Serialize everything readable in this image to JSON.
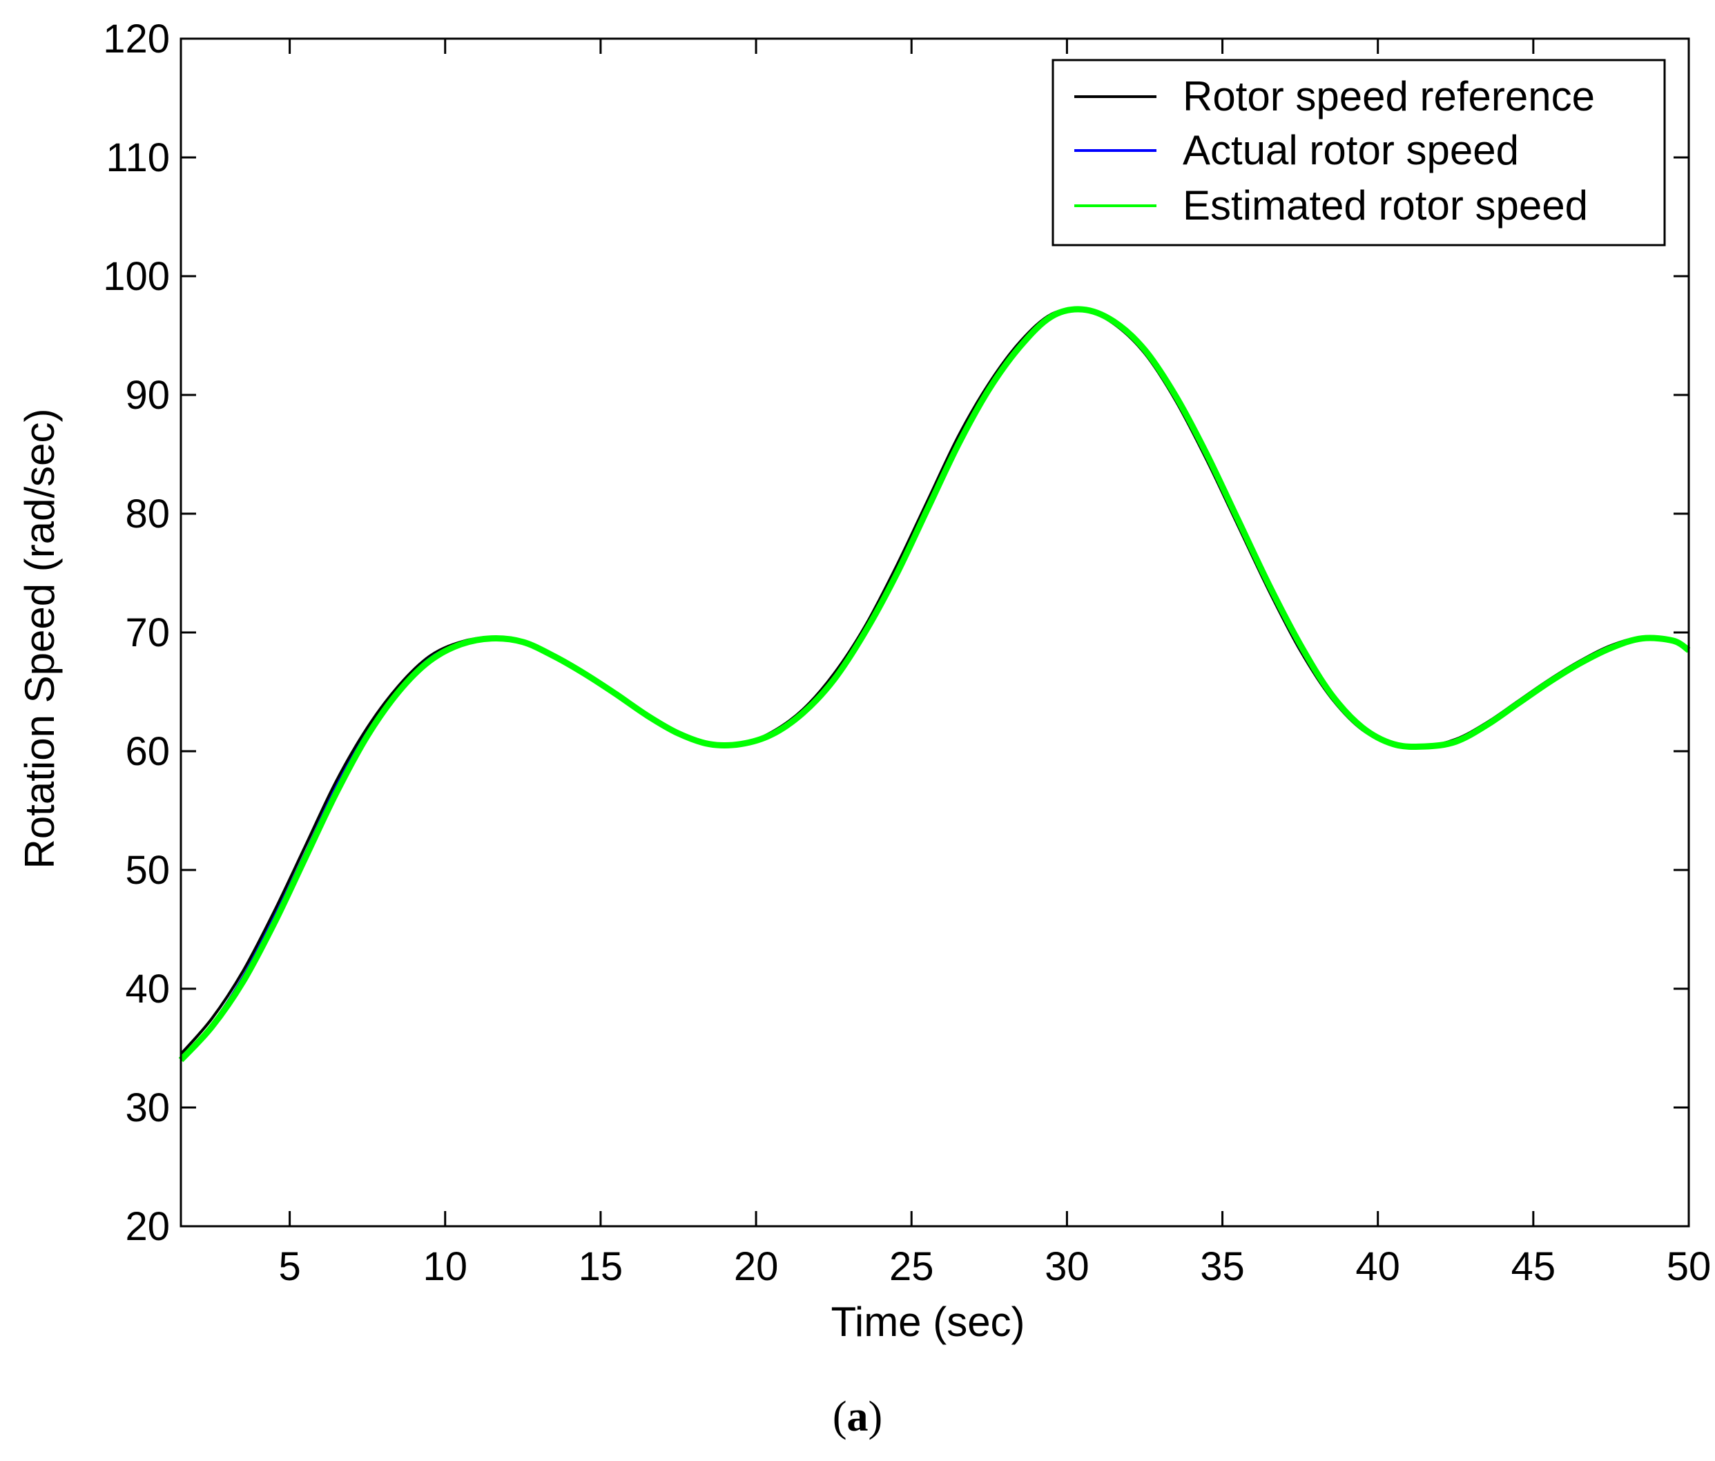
{
  "chart_data": {
    "type": "line",
    "xlabel": "Time (sec)",
    "ylabel": "Rotation Speed (rad/sec)",
    "xlim": [
      1.5,
      50
    ],
    "ylim": [
      20,
      120
    ],
    "x_ticks": [
      5,
      10,
      15,
      20,
      25,
      30,
      35,
      40,
      45,
      50
    ],
    "y_ticks": [
      20,
      30,
      40,
      50,
      60,
      70,
      80,
      90,
      100,
      110,
      120
    ],
    "grid": false,
    "legend_position": "top-right",
    "series": [
      {
        "name": "Rotor speed reference",
        "color": "#000000",
        "x": [
          1.5,
          2.5,
          3.5,
          4.5,
          5.5,
          6.5,
          7.5,
          8.5,
          9.5,
          10.5,
          11.5,
          12.5,
          13.5,
          14.5,
          15.5,
          16.5,
          17.5,
          18.5,
          19.5,
          20.5,
          21.5,
          22.5,
          23.5,
          24.5,
          25.5,
          26.5,
          27.5,
          28.5,
          29.5,
          30.5,
          31.5,
          32.5,
          33.5,
          34.5,
          35.5,
          36.5,
          37.5,
          38.5,
          39.5,
          40.5,
          41.5,
          42.5,
          43.5,
          44.5,
          45.5,
          46.5,
          47.5,
          48.5,
          49.5,
          50
        ],
        "y": [
          34.5,
          37.5,
          41.5,
          46.5,
          52,
          57.5,
          62,
          65.5,
          68,
          69.2,
          69.6,
          69.2,
          68,
          66.5,
          64.8,
          63,
          61.5,
          60.6,
          60.6,
          61.6,
          63.5,
          66.5,
          70.5,
          75.5,
          81,
          86.5,
          91,
          94.5,
          96.8,
          97.2,
          96,
          93.5,
          89.5,
          84.5,
          79,
          73.5,
          68.5,
          64.5,
          61.8,
          60.6,
          60.4,
          61,
          62.4,
          64.2,
          66,
          67.6,
          68.9,
          69.6,
          69.3,
          68.6
        ]
      },
      {
        "name": "Actual rotor speed",
        "color": "#0000ff",
        "x": [
          1.5,
          2.5,
          3.5,
          4.5,
          5.5,
          6.5,
          7.5,
          8.5,
          9.5,
          10.5,
          11.5,
          12.5,
          13.5,
          14.5,
          15.5,
          16.5,
          17.5,
          18.5,
          19.5,
          20.5,
          21.5,
          22.5,
          23.5,
          24.5,
          25.5,
          26.5,
          27.5,
          28.5,
          29.5,
          30.5,
          31.5,
          32.5,
          33.5,
          34.5,
          35.5,
          36.5,
          37.5,
          38.5,
          39.5,
          40.5,
          41.5,
          42.5,
          43.5,
          44.5,
          45.5,
          46.5,
          47.5,
          48.5,
          49.5,
          50
        ],
        "y": [
          34.2,
          37,
          41,
          46,
          51.4,
          57,
          61.6,
          65.2,
          67.8,
          69.1,
          69.6,
          69.2,
          68,
          66.5,
          64.8,
          63,
          61.5,
          60.6,
          60.6,
          61.5,
          63.3,
          66.2,
          70.2,
          75.1,
          80.6,
          86.1,
          90.7,
          94.3,
          96.7,
          97.2,
          96.1,
          93.6,
          89.7,
          84.7,
          79.2,
          73.7,
          68.7,
          64.6,
          61.9,
          60.6,
          60.4,
          60.9,
          62.3,
          64.1,
          65.9,
          67.5,
          68.8,
          69.6,
          69.3,
          68.6
        ]
      },
      {
        "name": "Estimated rotor speed",
        "color": "#00ff00",
        "x": [
          1.5,
          2.5,
          3.5,
          4.5,
          5.5,
          6.5,
          7.5,
          8.5,
          9.5,
          10.5,
          11.5,
          12.5,
          13.5,
          14.5,
          15.5,
          16.5,
          17.5,
          18.5,
          19.5,
          20.5,
          21.5,
          22.5,
          23.5,
          24.5,
          25.5,
          26.5,
          27.5,
          28.5,
          29.5,
          30.5,
          31.5,
          32.5,
          33.5,
          34.5,
          35.5,
          36.5,
          37.5,
          38.5,
          39.5,
          40.5,
          41.5,
          42.5,
          43.5,
          44.5,
          45.5,
          46.5,
          47.5,
          48.5,
          49.5,
          50
        ],
        "y": [
          34,
          36.8,
          40.6,
          45.5,
          51,
          56.5,
          61.3,
          65,
          67.6,
          69,
          69.5,
          69.2,
          68,
          66.5,
          64.8,
          63,
          61.5,
          60.6,
          60.6,
          61.4,
          63.2,
          66,
          70,
          74.8,
          80.3,
          85.8,
          90.5,
          94.1,
          96.6,
          97.2,
          96.2,
          93.8,
          89.9,
          85,
          79.5,
          74,
          69,
          64.8,
          62,
          60.6,
          60.4,
          60.8,
          62.2,
          64,
          65.8,
          67.4,
          68.7,
          69.5,
          69.3,
          68.5
        ]
      }
    ]
  },
  "caption": {
    "open": "(",
    "letter": "a",
    "close": ")"
  }
}
